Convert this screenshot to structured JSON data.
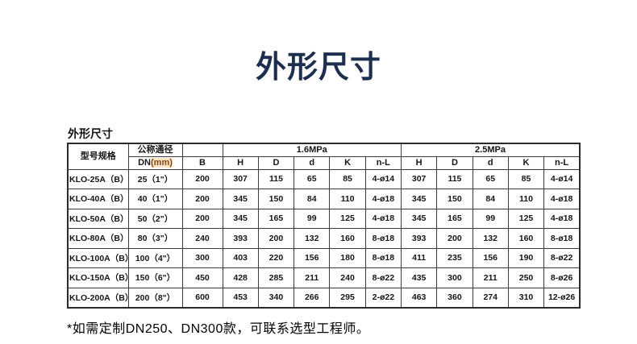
{
  "page": {
    "title": "外形尺寸",
    "title_color": "#1e2e4f",
    "section_label": "外形尺寸",
    "footnote": "*如需定制DN250、DN300款，可联系选型工程师。"
  },
  "table": {
    "header": {
      "model": "型号规格",
      "nominal_diameter": "公称通径",
      "dn_prefix": "DN",
      "dn_unit": "(mm)",
      "b": "B",
      "group_1_6mpa": "1.6MPa",
      "group_2_5mpa": "2.5MPa",
      "sub": [
        "H",
        "D",
        "d",
        "K",
        "n-L"
      ]
    },
    "rows": [
      {
        "model": "KLO-25A（B）",
        "dn": "25（1\"）",
        "b": "200",
        "p16": [
          "307",
          "115",
          "65",
          "85",
          "4-ø14"
        ],
        "p25": [
          "307",
          "115",
          "65",
          "85",
          "4-ø14"
        ]
      },
      {
        "model": "KLO-40A（B）",
        "dn": "40（1\"）",
        "b": "200",
        "p16": [
          "345",
          "150",
          "84",
          "110",
          "4-ø18"
        ],
        "p25": [
          "345",
          "150",
          "84",
          "110",
          "4-ø18"
        ]
      },
      {
        "model": "KLO-50A（B）",
        "dn": "50（2\"）",
        "b": "200",
        "p16": [
          "345",
          "165",
          "99",
          "125",
          "4-ø18"
        ],
        "p25": [
          "345",
          "165",
          "99",
          "125",
          "4-ø18"
        ]
      },
      {
        "model": "KLO-80A（B）",
        "dn": "80（3\"）",
        "b": "240",
        "p16": [
          "393",
          "200",
          "132",
          "160",
          "8-ø18"
        ],
        "p25": [
          "393",
          "200",
          "132",
          "160",
          "8-ø18"
        ]
      },
      {
        "model": "KLO-100A（B）",
        "dn": "100（4\"）",
        "b": "300",
        "p16": [
          "403",
          "220",
          "156",
          "180",
          "8-ø18"
        ],
        "p25": [
          "411",
          "235",
          "156",
          "190",
          "8-ø22"
        ]
      },
      {
        "model": "KLO-150A（B）",
        "dn": "150（6\"）",
        "b": "450",
        "p16": [
          "428",
          "285",
          "211",
          "240",
          "8-ø22"
        ],
        "p25": [
          "435",
          "300",
          "211",
          "250",
          "8-ø26"
        ]
      },
      {
        "model": "KLO-200A（B）",
        "dn": "200（8\"）",
        "b": "600",
        "p16": [
          "453",
          "340",
          "266",
          "295",
          "2-ø22"
        ],
        "p25": [
          "463",
          "360",
          "274",
          "310",
          "12-ø26"
        ]
      }
    ]
  }
}
